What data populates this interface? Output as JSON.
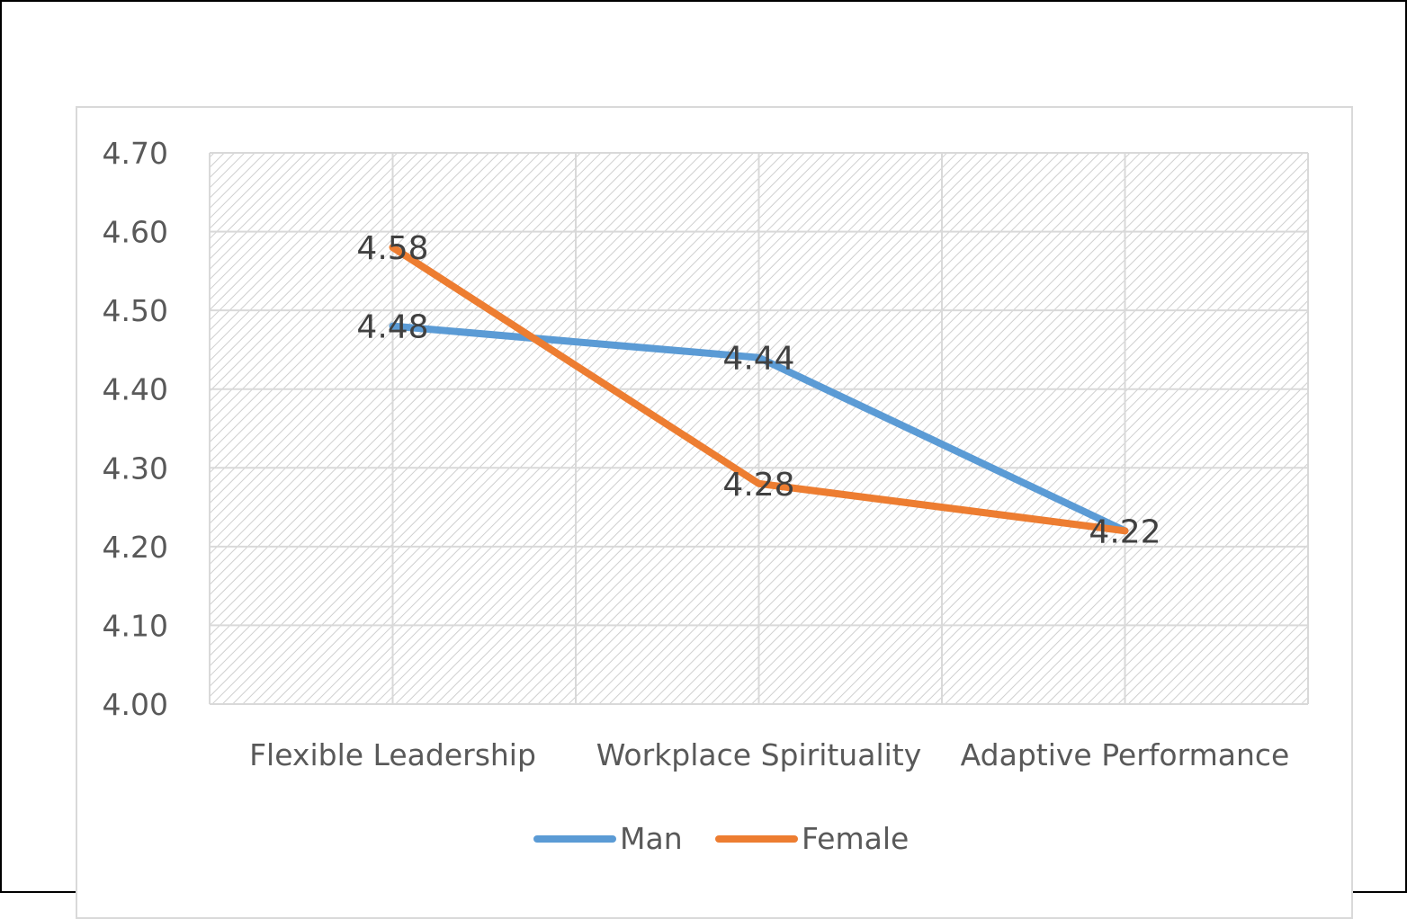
{
  "chart_data": {
    "type": "line",
    "title": "",
    "xlabel": "",
    "ylabel": "",
    "categories": [
      "Flexible Leadership",
      "Workplace Spirituality",
      "Adaptive Performance"
    ],
    "series": [
      {
        "name": "Man",
        "values": [
          4.48,
          4.44,
          4.22
        ],
        "color": "#5b9bd5",
        "labels": [
          "4.48",
          "4.44",
          ""
        ]
      },
      {
        "name": "Female",
        "values": [
          4.58,
          4.28,
          4.22
        ],
        "color": "#ed7d31",
        "labels": [
          "4.58",
          "4.28",
          "4.22"
        ]
      }
    ],
    "ylim": [
      4.0,
      4.7
    ],
    "yticks": [
      "4.00",
      "4.10",
      "4.20",
      "4.30",
      "4.40",
      "4.50",
      "4.60",
      "4.70"
    ],
    "grid": true,
    "legend": "bottom"
  }
}
